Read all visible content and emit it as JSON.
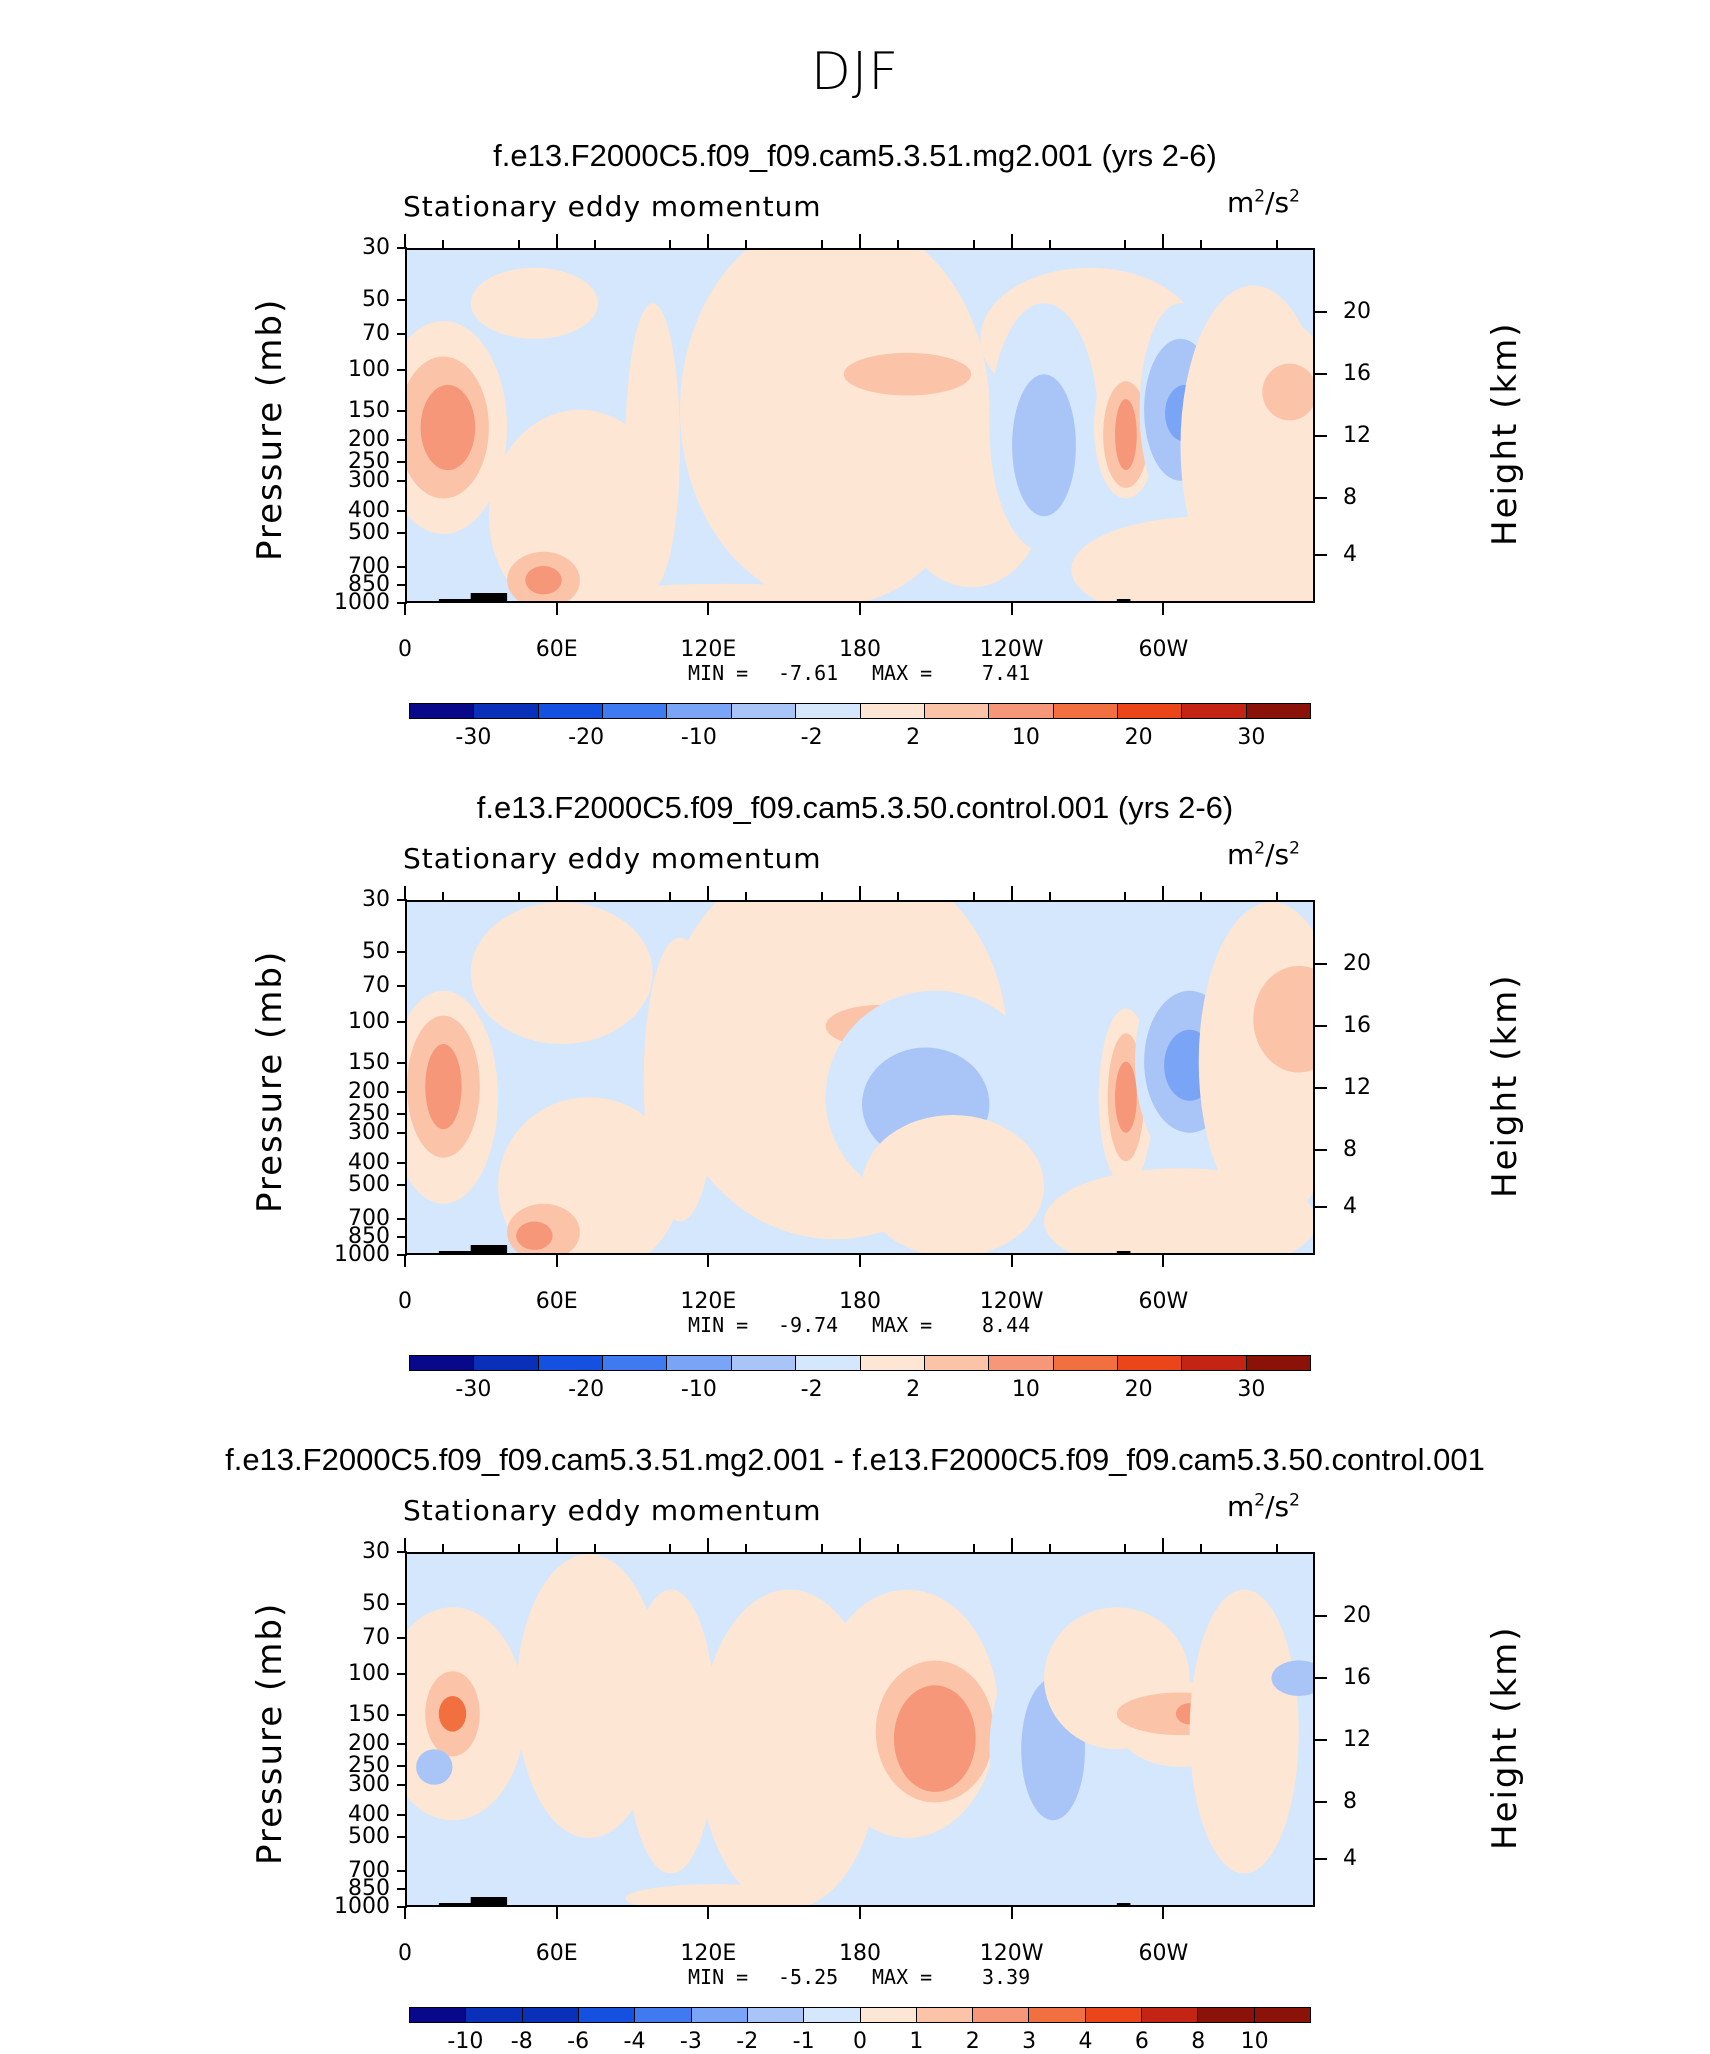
{
  "title": "DJF",
  "colors": {
    "palette": [
      "#08088a",
      "#0a2fb8",
      "#1551e0",
      "#3f7af0",
      "#7aa4f5",
      "#a9c5f8",
      "#d4e7fd",
      "#fde6d4",
      "#fbc4a9",
      "#f6977a",
      "#f2703f",
      "#eb4619",
      "#c42414",
      "#8a1208"
    ],
    "terrain": "#000000"
  },
  "panels": [
    {
      "title": "f.e13.F2000C5.f09_f09.cam5.3.51.mg2.001 (yrs 2-6)",
      "variable": "Stationary eddy momentum",
      "units_base": "m",
      "units_exp1": "2",
      "units_sep": "/s",
      "units_exp2": "2",
      "y_axis_title": "Pressure (mb)",
      "y2_axis_title": "Height (km)",
      "y_ticks": [
        "30",
        "50",
        "70",
        "100",
        "150",
        "200",
        "250",
        "300",
        "400",
        "500",
        "700",
        "850",
        "1000"
      ],
      "height_ticks": [
        "20",
        "16",
        "12",
        "8",
        "4"
      ],
      "x_ticks": [
        "0",
        "60E",
        "120E",
        "180",
        "120W",
        "60W"
      ],
      "min_label": "MIN =",
      "min_value": "-7.61",
      "max_label": "MAX =",
      "max_value": "7.41",
      "colorbar_labels": [
        "-30",
        "-20",
        "-10",
        "-2",
        "2",
        "10",
        "20",
        "30"
      ]
    },
    {
      "title": "f.e13.F2000C5.f09_f09.cam5.3.50.control.001 (yrs 2-6)",
      "variable": "Stationary eddy momentum",
      "units_base": "m",
      "units_exp1": "2",
      "units_sep": "/s",
      "units_exp2": "2",
      "y_axis_title": "Pressure (mb)",
      "y2_axis_title": "Height (km)",
      "y_ticks": [
        "30",
        "50",
        "70",
        "100",
        "150",
        "200",
        "250",
        "300",
        "400",
        "500",
        "700",
        "850",
        "1000"
      ],
      "height_ticks": [
        "20",
        "16",
        "12",
        "8",
        "4"
      ],
      "x_ticks": [
        "0",
        "60E",
        "120E",
        "180",
        "120W",
        "60W"
      ],
      "min_label": "MIN =",
      "min_value": "-9.74",
      "max_label": "MAX =",
      "max_value": "8.44",
      "colorbar_labels": [
        "-30",
        "-20",
        "-10",
        "-2",
        "2",
        "10",
        "20",
        "30"
      ]
    },
    {
      "title": "f.e13.F2000C5.f09_f09.cam5.3.51.mg2.001 - f.e13.F2000C5.f09_f09.cam5.3.50.control.001",
      "variable": "Stationary eddy momentum",
      "units_base": "m",
      "units_exp1": "2",
      "units_sep": "/s",
      "units_exp2": "2",
      "y_axis_title": "Pressure (mb)",
      "y2_axis_title": "Height (km)",
      "y_ticks": [
        "30",
        "50",
        "70",
        "100",
        "150",
        "200",
        "250",
        "300",
        "400",
        "500",
        "700",
        "850",
        "1000"
      ],
      "height_ticks": [
        "20",
        "16",
        "12",
        "8",
        "4"
      ],
      "x_ticks": [
        "0",
        "60E",
        "120E",
        "180",
        "120W",
        "60W"
      ],
      "min_label": "MIN =",
      "min_value": "-5.25",
      "max_label": "MAX =",
      "max_value": "3.39",
      "colorbar_labels": [
        "-10",
        "-8",
        "-6",
        "-4",
        "-3",
        "-2",
        "-1",
        "0",
        "1",
        "2",
        "3",
        "4",
        "6",
        "8",
        "10"
      ]
    }
  ],
  "chart_data": [
    {
      "type": "heatmap",
      "title": "f.e13.F2000C5.f09_f09.cam5.3.51.mg2.001 (yrs 2-6)",
      "ylabel": "Pressure (mb)",
      "y2label": "Height (km)",
      "xlim": [
        0,
        360
      ],
      "ylim": [
        1000,
        30
      ],
      "y_scale": "log",
      "contour_levels": [
        -30,
        -20,
        -10,
        -2,
        2,
        10,
        20,
        30
      ],
      "min": -7.61,
      "max": 7.41
    },
    {
      "type": "heatmap",
      "title": "f.e13.F2000C5.f09_f09.cam5.3.50.control.001 (yrs 2-6)",
      "ylabel": "Pressure (mb)",
      "y2label": "Height (km)",
      "xlim": [
        0,
        360
      ],
      "ylim": [
        1000,
        30
      ],
      "y_scale": "log",
      "contour_levels": [
        -30,
        -20,
        -10,
        -2,
        2,
        10,
        20,
        30
      ],
      "min": -9.74,
      "max": 8.44
    },
    {
      "type": "heatmap",
      "title": "f.e13.F2000C5.f09_f09.cam5.3.51.mg2.001 - f.e13.F2000C5.f09_f09.cam5.3.50.control.001",
      "ylabel": "Pressure (mb)",
      "y2label": "Height (km)",
      "xlim": [
        0,
        360
      ],
      "ylim": [
        1000,
        30
      ],
      "y_scale": "log",
      "contour_levels": [
        -10,
        -8,
        -6,
        -4,
        -3,
        -2,
        -1,
        0,
        1,
        2,
        3,
        4,
        6,
        8,
        10
      ],
      "min": -5.25,
      "max": 3.39
    }
  ]
}
